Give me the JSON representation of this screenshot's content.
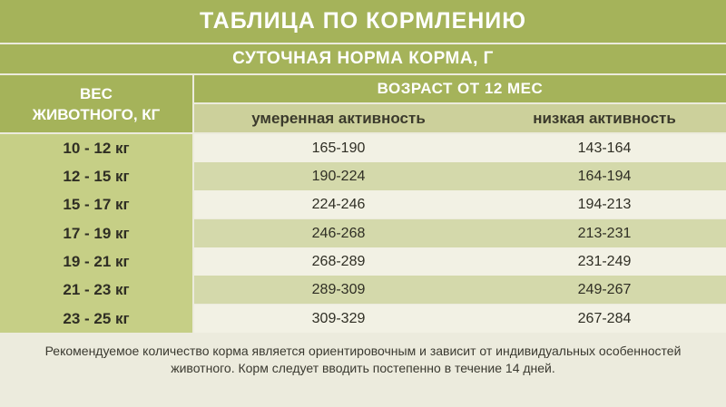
{
  "title": "ТАБЛИЦА ПО КОРМЛЕНИЮ",
  "subtitle": "СУТОЧНАЯ НОРМА КОРМА, Г",
  "weight_header_line1": "ВЕС",
  "weight_header_line2": "ЖИВОТНОГО, КГ",
  "age_header": "ВОЗРАСТ ОТ 12 МЕС",
  "columns": [
    "умеренная активность",
    "низкая активность"
  ],
  "rows": [
    {
      "weight": "10 - 12 кг",
      "moderate": "165-190",
      "low": "143-164"
    },
    {
      "weight": "12 - 15 кг",
      "moderate": "190-224",
      "low": "164-194"
    },
    {
      "weight": "15 - 17 кг",
      "moderate": "224-246",
      "low": "194-213"
    },
    {
      "weight": "17 - 19 кг",
      "moderate": "246-268",
      "low": "213-231"
    },
    {
      "weight": "19 - 21 кг",
      "moderate": "268-289",
      "low": "231-249"
    },
    {
      "weight": "21 - 23 кг",
      "moderate": "289-309",
      "low": "249-267"
    },
    {
      "weight": "23 - 25 кг",
      "moderate": "309-329",
      "low": "267-284"
    }
  ],
  "note_line1": "Рекомендуемое количество корма является ориентировочным и зависит от индивидуальных особенностей",
  "note_line2": "животного. Корм следует вводить постепенно в течение 14 дней.",
  "colors": {
    "header_green": "#a5b35a",
    "weight_column": "#c6cf86",
    "row_light": "#f2f1e4",
    "row_dark": "#d4d9ab",
    "background": "#ecebdd"
  }
}
